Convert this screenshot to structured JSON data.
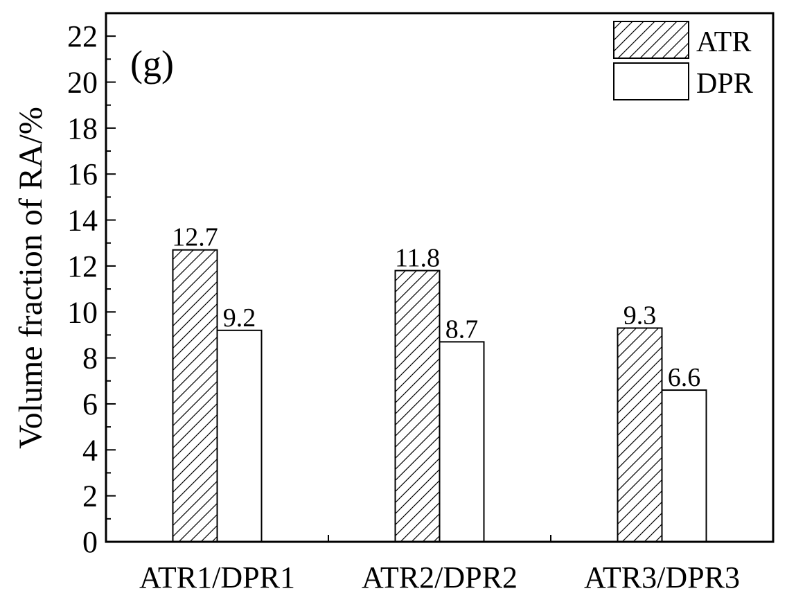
{
  "chart_data": {
    "type": "bar",
    "panel_label": "(g)",
    "categories": [
      "ATR1/DPR1",
      "ATR2/DPR2",
      "ATR3/DPR3"
    ],
    "series": [
      {
        "name": "ATR",
        "values": [
          12.7,
          11.8,
          9.3
        ],
        "pattern": "hatched"
      },
      {
        "name": "DPR",
        "values": [
          9.2,
          8.7,
          6.6
        ],
        "pattern": "empty"
      }
    ],
    "data_labels": [
      [
        "12.7",
        "11.8",
        "9.3"
      ],
      [
        "9.2",
        "8.7",
        "6.6"
      ]
    ],
    "ylabel": "Volume fraction of RA/%",
    "xlabel": "",
    "ylim": [
      0,
      23
    ],
    "yticks": [
      "0",
      "2",
      "4",
      "6",
      "8",
      "10",
      "12",
      "14",
      "16",
      "18",
      "20",
      "22"
    ],
    "grid": false,
    "legend_position": "top-right",
    "colors": {
      "stroke": "#000000",
      "fill": "#ffffff"
    }
  }
}
